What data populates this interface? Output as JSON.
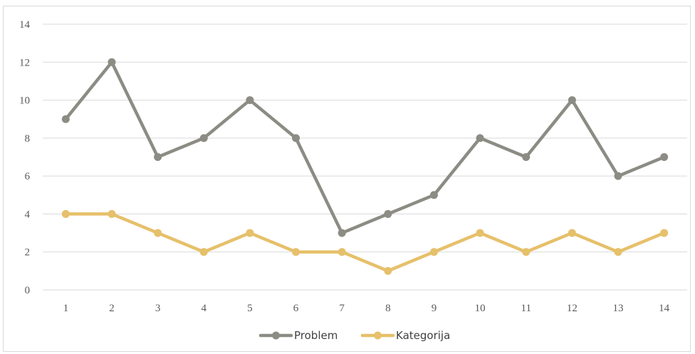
{
  "chart_data": {
    "type": "line",
    "title": "",
    "xlabel": "",
    "ylabel": "",
    "categories": [
      "1",
      "2",
      "3",
      "4",
      "5",
      "6",
      "7",
      "8",
      "9",
      "10",
      "11",
      "12",
      "13",
      "14"
    ],
    "series": [
      {
        "name": "Problem",
        "color": "#8c8c84",
        "values": [
          9,
          12,
          7,
          8,
          10,
          8,
          3,
          4,
          5,
          8,
          7,
          10,
          6,
          7
        ]
      },
      {
        "name": "Kategorija",
        "color": "#e6c06a",
        "values": [
          4,
          4,
          3,
          2,
          3,
          2,
          2,
          1,
          2,
          3,
          2,
          3,
          2,
          3
        ]
      }
    ],
    "ylim": [
      0,
      14
    ],
    "yticks": [
      "0",
      "2",
      "4",
      "6",
      "8",
      "10",
      "12",
      "14"
    ],
    "grid": true,
    "gridlines": "horizontal",
    "legend": "bottom-center",
    "gridColor": "#d9d9d9"
  }
}
